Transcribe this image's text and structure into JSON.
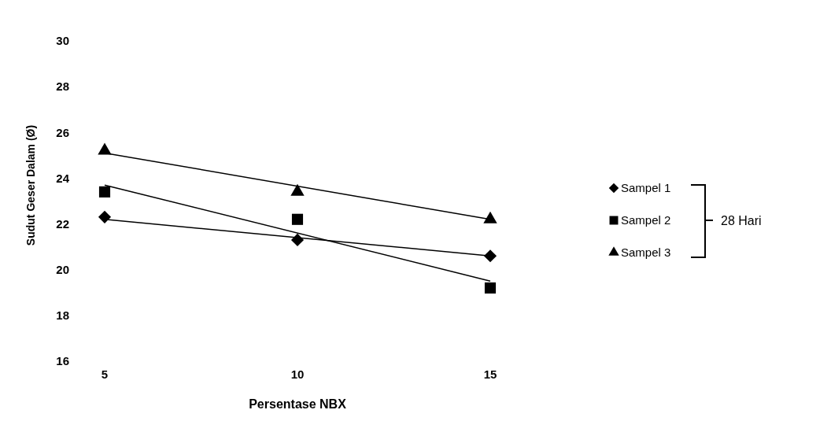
{
  "chart_data": {
    "type": "scatter",
    "xlabel": "Persentase NBX",
    "ylabel": "Sudut Geser Dalam (Ø)",
    "xlim": [
      5,
      15
    ],
    "xticks": [
      5,
      10,
      15
    ],
    "ylim": [
      16,
      30
    ],
    "yticks": [
      16,
      18,
      20,
      22,
      24,
      26,
      28,
      30
    ],
    "grid": false,
    "legend": "right",
    "annotations": [
      "28 Hari"
    ],
    "series": [
      {
        "name": "Sampel 1",
        "marker": "diamond",
        "color": "#000000",
        "x": [
          5,
          10,
          15
        ],
        "values": [
          22.3,
          21.3,
          20.6
        ]
      },
      {
        "name": "Sampel 2",
        "marker": "square",
        "color": "#000000",
        "x": [
          5,
          10,
          15
        ],
        "values": [
          23.4,
          22.2,
          19.2
        ]
      },
      {
        "name": "Sampel 3",
        "marker": "triangle",
        "color": "#000000",
        "x": [
          5,
          10,
          15
        ],
        "values": [
          25.2,
          23.4,
          22.2
        ]
      },
      {
        "type": "line",
        "color": "#000000",
        "x": [
          5,
          15
        ],
        "values": [
          22.2,
          20.6
        ]
      },
      {
        "type": "line",
        "color": "#000000",
        "x": [
          5,
          15
        ],
        "values": [
          23.7,
          19.5
        ]
      },
      {
        "type": "line",
        "color": "#000000",
        "x": [
          5,
          15
        ],
        "values": [
          25.1,
          22.2
        ]
      }
    ]
  }
}
